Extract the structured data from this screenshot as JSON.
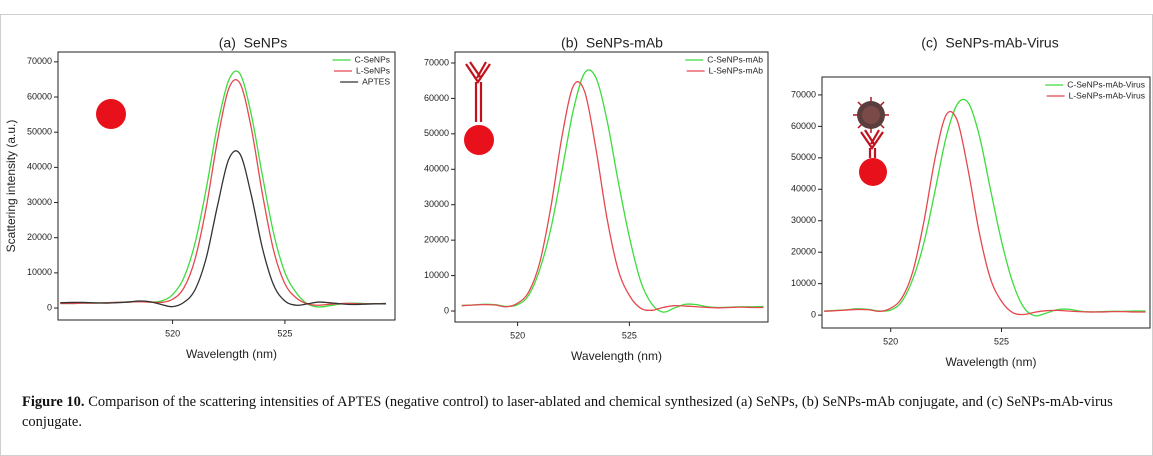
{
  "chart_data": [
    {
      "type": "line",
      "title": "(a)  SeNPs",
      "x_label": "Wavelength (nm)",
      "y_label": "Scattering intensity (a.u.)",
      "x": [
        515,
        515.5,
        516,
        516.5,
        517,
        517.5,
        518,
        518.5,
        519,
        519.5,
        520,
        520.5,
        521,
        521.5,
        522,
        522.5,
        523,
        523.5,
        524,
        524.5,
        525,
        525.5,
        526,
        526.5,
        527,
        527.5,
        528,
        528.5,
        529,
        529.5
      ],
      "series": [
        {
          "name": "C-SeNPs",
          "color": "#3ddc3d",
          "values": [
            1300,
            1300,
            1400,
            1400,
            1500,
            1600,
            1700,
            1800,
            1700,
            2000,
            3800,
            8600,
            18500,
            34000,
            51900,
            64800,
            66600,
            55100,
            37600,
            21200,
            10100,
            4400,
            1200,
            300,
            700,
            1200,
            1400,
            1300,
            1200,
            1300
          ]
        },
        {
          "name": "L-SeNPs",
          "color": "#e5474f",
          "values": [
            1300,
            1300,
            1400,
            1400,
            1500,
            1600,
            1700,
            1800,
            1700,
            1600,
            2500,
            5700,
            13900,
            28700,
            47700,
            62400,
            63900,
            51300,
            32400,
            16300,
            6900,
            2900,
            1200,
            800,
            1100,
            1300,
            1300,
            1200,
            1200,
            1300
          ]
        },
        {
          "name": "APTES",
          "color": "#333333",
          "values": [
            1500,
            1600,
            1600,
            1500,
            1400,
            1500,
            1700,
            2000,
            1800,
            1000,
            400,
            1600,
            5200,
            14300,
            29100,
            42300,
            43800,
            32200,
            17000,
            6500,
            2000,
            800,
            1200,
            1700,
            1500,
            1200,
            1000,
            1100,
            1200,
            1200
          ]
        }
      ],
      "xlim": [
        514.9,
        529.9
      ],
      "ylim": [
        -3400,
        72800
      ],
      "xticks": [
        520,
        525
      ],
      "yticks": [
        0,
        10000,
        20000,
        30000,
        40000,
        50000,
        60000,
        70000
      ],
      "legend": "upper right"
    },
    {
      "type": "line",
      "title": "(b)  SeNPs-mAb",
      "x_label": "Wavelength (nm)",
      "x": [
        517.5,
        518,
        518.5,
        519,
        519.5,
        520,
        520.5,
        521,
        521.5,
        522,
        522.5,
        523,
        523.5,
        524,
        524.5,
        525,
        525.5,
        526,
        526.5,
        527,
        527.5,
        528,
        528.5,
        529,
        529.5,
        530,
        530.5,
        531
      ],
      "series": [
        {
          "name": "C-SeNPs-mAb",
          "color": "#3ddc3d",
          "values": [
            1600,
            1700,
            1900,
            1800,
            1300,
            1800,
            4500,
            11900,
            23600,
            40100,
            56900,
            67200,
            65900,
            53800,
            36600,
            20900,
            8500,
            2000,
            -300,
            800,
            1900,
            1800,
            1200,
            1000,
            1100,
            1200,
            1200,
            1300
          ]
        },
        {
          "name": "L-SeNPs-mAb",
          "color": "#e5474f",
          "values": [
            1500,
            1700,
            1800,
            1700,
            1200,
            2200,
            5400,
            13900,
            29800,
            49800,
            63600,
            61900,
            45900,
            26100,
            11600,
            4400,
            800,
            200,
            1000,
            1500,
            1400,
            1200,
            1000,
            900,
            1000,
            1100,
            1000,
            1000
          ]
        }
      ],
      "xlim": [
        517.2,
        531.2
      ],
      "ylim": [
        -3100,
        73100
      ],
      "xticks": [
        520,
        525
      ],
      "yticks": [
        0,
        10000,
        20000,
        30000,
        40000,
        50000,
        60000,
        70000
      ],
      "legend": "upper right"
    },
    {
      "type": "line",
      "title": "(c)  SeNPs-mAb-Virus",
      "x_label": "Wavelength (nm)",
      "x": [
        517,
        517.5,
        518,
        518.5,
        519,
        519.5,
        520,
        520.5,
        521,
        521.5,
        522,
        522.5,
        523,
        523.5,
        524,
        524.5,
        525,
        525.5,
        526,
        526.5,
        527,
        527.5,
        528,
        528.5,
        529,
        529.5,
        530,
        530.5,
        531,
        531.5
      ],
      "series": [
        {
          "name": "C-SeNPs-mAb-Virus",
          "color": "#3ddc3d",
          "values": [
            1300,
            1500,
            1700,
            2000,
            1800,
            1300,
            1600,
            4300,
            11500,
            23000,
            39500,
            56500,
            67000,
            67500,
            57000,
            40000,
            23500,
            10500,
            2500,
            -200,
            600,
            1700,
            1900,
            1300,
            1000,
            1100,
            1200,
            1200,
            1300,
            1300
          ]
        },
        {
          "name": "L-SeNPs-mAb-Virus",
          "color": "#e5474f",
          "values": [
            1200,
            1400,
            1600,
            1800,
            1700,
            1200,
            2200,
            5400,
            13900,
            29800,
            49800,
            63600,
            61900,
            45900,
            26100,
            11600,
            4400,
            800,
            200,
            900,
            1400,
            1500,
            1300,
            1100,
            1000,
            1000,
            1100,
            1100,
            1000,
            1000
          ]
        }
      ],
      "xlim": [
        516.9,
        531.7
      ],
      "ylim": [
        -4100,
        75700
      ],
      "xticks": [
        520,
        525
      ],
      "yticks": [
        0,
        10000,
        20000,
        30000,
        40000,
        50000,
        60000,
        70000
      ],
      "legend": "upper right"
    }
  ],
  "caption": {
    "label": "Figure 10.",
    "text": "Comparison of the scattering intensities of APTES (negative control) to laser-ablated and chemical synthesized (a) SeNPs, (b) SeNPs-mAb conjugate, and (c) SeNPs-mAb-virus conjugate."
  }
}
